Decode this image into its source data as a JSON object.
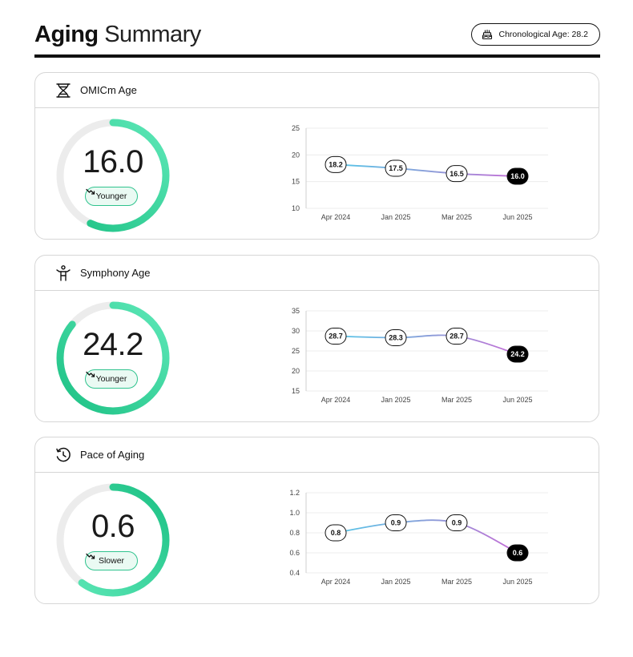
{
  "header": {
    "title_bold": "Aging",
    "title_light": "Summary",
    "chronological_label": "Chronological Age: 28.2",
    "chronological_icon": "cake-icon"
  },
  "colors": {
    "gauge_start": "#1cc184",
    "gauge_end": "#5ee8b8",
    "gauge_track": "#ececec",
    "line_start": "#55c6e8",
    "line_mid": "#8e9ad8",
    "line_end": "#c56bd6",
    "last_point_fill": "#000000"
  },
  "cards": [
    {
      "title": "OMICm Age",
      "icon": "dna-icon",
      "value": "16.0",
      "badge": "Younger",
      "badge_icon": "trending-down-icon",
      "gauge_fraction": 0.57
    },
    {
      "title": "Symphony Age",
      "icon": "person-icon",
      "value": "24.2",
      "badge": "Younger",
      "badge_icon": "trending-down-icon",
      "gauge_fraction": 0.86
    },
    {
      "title": "Pace of Aging",
      "icon": "clock-icon",
      "value": "0.6",
      "badge": "Slower",
      "badge_icon": "trending-down-icon",
      "gauge_fraction": 0.6
    }
  ],
  "chart_data": [
    {
      "type": "line",
      "categories": [
        "Apr 2024",
        "Jan 2025",
        "Mar 2025",
        "Jun 2025"
      ],
      "values": [
        18.2,
        17.5,
        16.5,
        16.0
      ],
      "point_labels": [
        "18.2",
        "17.5",
        "16.5",
        "16.0"
      ],
      "yticks": [
        "25",
        "20",
        "15",
        "10"
      ],
      "ylim": [
        10,
        25
      ],
      "grid": true
    },
    {
      "type": "line",
      "categories": [
        "Apr 2024",
        "Jan 2025",
        "Mar 2025",
        "Jun 2025"
      ],
      "values": [
        28.7,
        28.3,
        28.7,
        24.2
      ],
      "point_labels": [
        "28.7",
        "28.3",
        "28.7",
        "24.2"
      ],
      "yticks": [
        "35",
        "30",
        "25",
        "20",
        "15"
      ],
      "ylim": [
        15,
        35
      ],
      "grid": true
    },
    {
      "type": "line",
      "categories": [
        "Apr 2024",
        "Jan 2025",
        "Mar 2025",
        "Jun 2025"
      ],
      "values": [
        0.8,
        0.9,
        0.9,
        0.6
      ],
      "point_labels": [
        "0.8",
        "0.9",
        "0.9",
        "0.6"
      ],
      "yticks": [
        "1.2",
        "1.0",
        "0.8",
        "0.6",
        "0.4"
      ],
      "ylim": [
        0.4,
        1.2
      ],
      "grid": true
    }
  ]
}
